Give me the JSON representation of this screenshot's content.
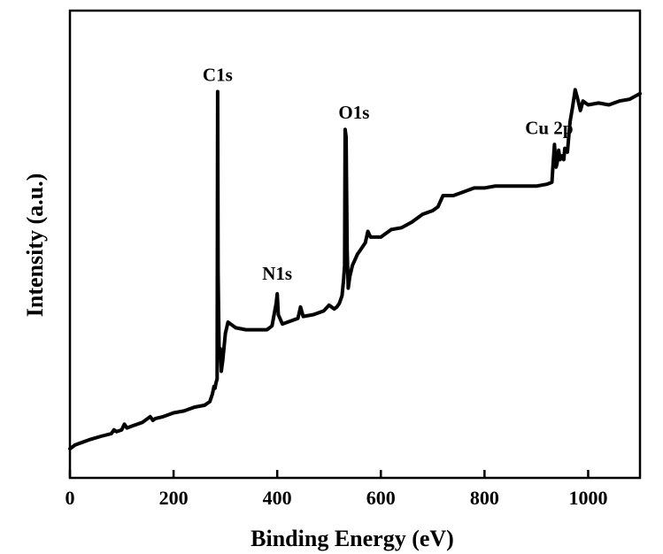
{
  "chart_data": {
    "type": "line",
    "title": "",
    "xlabel": "Binding Energy (eV)",
    "ylabel": "Intensity (a.u.)",
    "xlim": [
      0,
      1100
    ],
    "ylim": [
      0,
      100
    ],
    "y_tick_labels_shown": false,
    "grid": false,
    "legend": "none",
    "line_color": "#000000",
    "xticks": [
      0,
      200,
      400,
      600,
      800,
      1000
    ],
    "series": [
      {
        "x": [
          0,
          10,
          20,
          40,
          60,
          80,
          85,
          90,
          100,
          105,
          110,
          120,
          140,
          155,
          160,
          165,
          180,
          200,
          220,
          240,
          260,
          270,
          275,
          278,
          280,
          282,
          284,
          285,
          286,
          288,
          290,
          292,
          295,
          300,
          305,
          310,
          320,
          340,
          360,
          380,
          390,
          398,
          400,
          402,
          410,
          420,
          440,
          445,
          450,
          470,
          490,
          500,
          510,
          515,
          520,
          525,
          528,
          530,
          531,
          533,
          535,
          537,
          540,
          545,
          550,
          555,
          560,
          570,
          575,
          580,
          600,
          620,
          640,
          660,
          680,
          700,
          710,
          720,
          740,
          760,
          780,
          800,
          820,
          840,
          860,
          880,
          900,
          920,
          930,
          932,
          935,
          938,
          940,
          943,
          946,
          950,
          953,
          955,
          960,
          965,
          970,
          975,
          980,
          985,
          990,
          1000,
          1020,
          1040,
          1060,
          1080,
          1100
        ],
        "y": [
          3.5,
          4.5,
          5.0,
          6.0,
          6.8,
          7.5,
          8.5,
          8.0,
          8.5,
          10.0,
          9.0,
          9.5,
          10.5,
          12.0,
          11.0,
          11.5,
          12.0,
          13.0,
          13.5,
          14.5,
          15.0,
          16.0,
          18.0,
          20.0,
          19.5,
          21.0,
          22.0,
          98.0,
          50.0,
          28.0,
          30.0,
          24.0,
          27.0,
          34.0,
          37.0,
          36.5,
          35.5,
          35.0,
          35.0,
          35.0,
          36.0,
          42.0,
          44.5,
          39.0,
          36.5,
          37.0,
          38.0,
          41.0,
          38.5,
          39.0,
          40.0,
          41.5,
          40.5,
          41.0,
          42.0,
          44.0,
          48.0,
          52.0,
          88.0,
          86.0,
          56.0,
          46.0,
          49.0,
          52.0,
          53.5,
          55.0,
          56.0,
          58.0,
          61.0,
          59.5,
          59.5,
          61.5,
          62.0,
          63.5,
          65.5,
          66.5,
          67.5,
          70.5,
          70.5,
          71.5,
          72.5,
          72.5,
          73.0,
          73.0,
          73.0,
          73.0,
          73.0,
          73.5,
          74.0,
          78.0,
          84.0,
          78.0,
          79.0,
          82.5,
          80.0,
          81.0,
          80.0,
          83.0,
          82.0,
          90.0,
          94.0,
          98.5,
          96.0,
          93.0,
          95.5,
          94.5,
          95.0,
          94.5,
          95.5,
          96.0,
          97.5
        ]
      }
    ],
    "annotations": [
      {
        "text": "C1s",
        "x": 285,
        "y": 98
      },
      {
        "text": "N1s",
        "x": 400,
        "y": 44.5
      },
      {
        "text": "O1s",
        "x": 531,
        "y": 88
      },
      {
        "text": "Cu 2p",
        "x": 935,
        "y": 84
      }
    ]
  }
}
